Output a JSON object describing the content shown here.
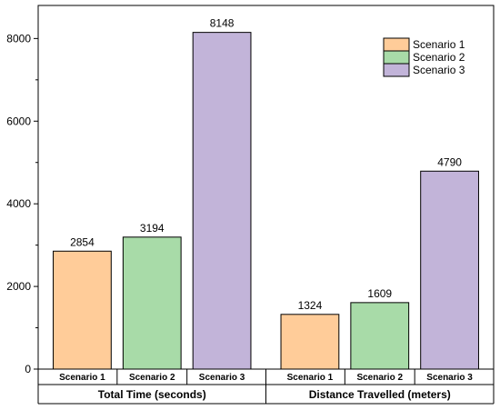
{
  "chart_data": {
    "type": "bar",
    "ylim": [
      0,
      8800
    ],
    "yticks": [
      0,
      2000,
      4000,
      6000,
      8000
    ],
    "legend_position": "top-right",
    "groups": [
      {
        "label": "Total Time (seconds)",
        "categories": [
          "Scenario 1",
          "Scenario 2",
          "Scenario 3"
        ],
        "values": [
          2854,
          3194,
          8148
        ]
      },
      {
        "label": "Distance Travelled (meters)",
        "categories": [
          "Scenario 1",
          "Scenario 2",
          "Scenario 3"
        ],
        "values": [
          1324,
          1609,
          4790
        ]
      }
    ],
    "series": [
      {
        "name": "Scenario 1",
        "color": "#FFCC99"
      },
      {
        "name": "Scenario 2",
        "color": "#A8DBA8"
      },
      {
        "name": "Scenario 3",
        "color": "#C2B4D9"
      }
    ],
    "grid": false
  }
}
